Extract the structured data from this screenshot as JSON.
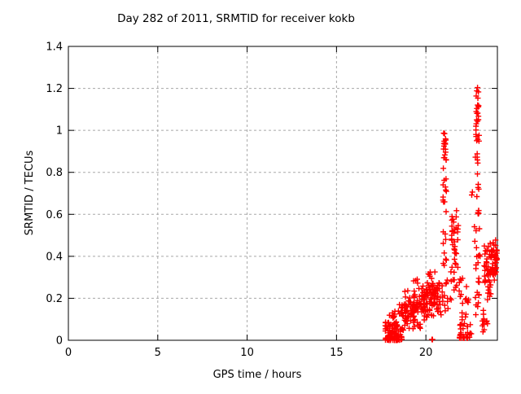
{
  "title": "Day 282 of 2011, SRMTID for receiver kokb",
  "chart_data": {
    "type": "scatter",
    "marker": "plus",
    "marker_color": "#ff0000",
    "grid_color": "#a8a8a8",
    "axis_color": "#000000",
    "background_color": "#ffffff",
    "title": "Day 282 of 2011, SRMTID for receiver kokb",
    "xlabel": "GPS time / hours",
    "ylabel": "SRMTID / TECUs",
    "xlim": [
      0,
      24
    ],
    "ylim": [
      0,
      1.4
    ],
    "xticks": [
      0,
      5,
      10,
      15,
      20
    ],
    "xtick_labels": [
      "0",
      "5",
      "10",
      "15",
      "20"
    ],
    "yticks": [
      0,
      0.2,
      0.4,
      0.6,
      0.8,
      1.0,
      1.2,
      1.4
    ],
    "ytick_labels": [
      "0",
      "0.2",
      "0.4",
      "0.6",
      "0.8",
      "1",
      "1.2",
      "1.4"
    ],
    "grid": "dashed, at every major tick, mirrored inward tick marks on all four borders",
    "legend": "none",
    "notable_points": {
      "maximum": {
        "t_hours": 22.87,
        "value_tecus": 1.21
      },
      "secondary_peak": {
        "t_hours": 21.0,
        "value_tecus": 0.97
      },
      "data_start_hour": 17.75,
      "data_end_hour": 24.0,
      "empty_range_hours": [
        0,
        17.7
      ]
    },
    "clusters": [
      {
        "t0": 17.72,
        "t1": 18.15,
        "v0": 0.0,
        "v1": 0.13,
        "n": 48,
        "dist": "low",
        "cols": 4
      },
      {
        "t0": 18.1,
        "t1": 18.7,
        "v0": 0.0,
        "v1": 0.2,
        "n": 62,
        "dist": "low",
        "cols": 6
      },
      {
        "t0": 18.65,
        "t1": 19.35,
        "v0": 0.02,
        "v1": 0.25,
        "n": 60,
        "dist": "mid",
        "cols": 6
      },
      {
        "t0": 19.3,
        "t1": 20.1,
        "v0": 0.04,
        "v1": 0.31,
        "n": 70,
        "dist": "mid",
        "cols": 7
      },
      {
        "t0": 20.05,
        "t1": 20.65,
        "v0": 0.08,
        "v1": 0.36,
        "n": 58,
        "dist": "mid",
        "cols": 5
      },
      {
        "t0": 20.6,
        "t1": 20.95,
        "v0": 0.1,
        "v1": 0.3,
        "n": 22,
        "dist": "mid",
        "cols": 3
      },
      {
        "t0": 20.28,
        "t1": 20.38,
        "v0": 0.0,
        "v1": 0.03,
        "n": 3,
        "dist": "uni"
      },
      {
        "t0": 20.95,
        "t1": 21.15,
        "v0": 0.3,
        "v1": 0.86,
        "n": 22,
        "dist": "uni",
        "cols": 2
      },
      {
        "t0": 20.97,
        "t1": 21.13,
        "v0": 0.86,
        "v1": 0.99,
        "n": 16,
        "dist": "uni",
        "cols": 2
      },
      {
        "t0": 20.9,
        "t1": 21.25,
        "v0": 0.14,
        "v1": 0.3,
        "n": 10,
        "dist": "uni",
        "cols": 3
      },
      {
        "t0": 21.38,
        "t1": 21.82,
        "v0": 0.35,
        "v1": 0.64,
        "n": 30,
        "dist": "mid",
        "cols": 3
      },
      {
        "t0": 21.35,
        "t1": 21.95,
        "v0": 0.18,
        "v1": 0.35,
        "n": 16,
        "dist": "uni",
        "cols": 4
      },
      {
        "t0": 21.85,
        "t1": 22.55,
        "v0": 0.01,
        "v1": 0.16,
        "n": 36,
        "dist": "low",
        "cols": 5
      },
      {
        "t0": 21.95,
        "t1": 22.45,
        "v0": 0.16,
        "v1": 0.3,
        "n": 10,
        "dist": "uni",
        "cols": 4
      },
      {
        "t0": 22.55,
        "t1": 22.65,
        "v0": 0.66,
        "v1": 0.72,
        "n": 2,
        "dist": "uni"
      },
      {
        "t0": 22.8,
        "t1": 22.96,
        "v0": 1.04,
        "v1": 1.21,
        "n": 16,
        "dist": "uni",
        "cols": 2
      },
      {
        "t0": 22.78,
        "t1": 22.98,
        "v0": 0.88,
        "v1": 1.04,
        "n": 10,
        "dist": "uni",
        "cols": 2
      },
      {
        "t0": 22.75,
        "t1": 23.0,
        "v0": 0.55,
        "v1": 0.88,
        "n": 14,
        "dist": "uni",
        "cols": 2
      },
      {
        "t0": 22.7,
        "t1": 23.05,
        "v0": 0.28,
        "v1": 0.55,
        "n": 13,
        "dist": "uni",
        "cols": 3
      },
      {
        "t0": 22.65,
        "t1": 23.05,
        "v0": 0.12,
        "v1": 0.28,
        "n": 10,
        "dist": "uni",
        "cols": 3
      },
      {
        "t0": 23.25,
        "t1": 23.7,
        "v0": 0.15,
        "v1": 0.5,
        "n": 46,
        "dist": "mid",
        "cols": 3
      },
      {
        "t0": 23.15,
        "t1": 23.45,
        "v0": 0.04,
        "v1": 0.15,
        "n": 12,
        "dist": "uni",
        "cols": 3
      },
      {
        "t0": 23.7,
        "t1": 23.98,
        "v0": 0.26,
        "v1": 0.5,
        "n": 30,
        "dist": "mid",
        "cols": 3
      },
      {
        "t0": 23.86,
        "t1": 23.98,
        "v0": 0.3,
        "v1": 0.46,
        "n": 10,
        "dist": "uni",
        "cols": 2
      }
    ]
  }
}
